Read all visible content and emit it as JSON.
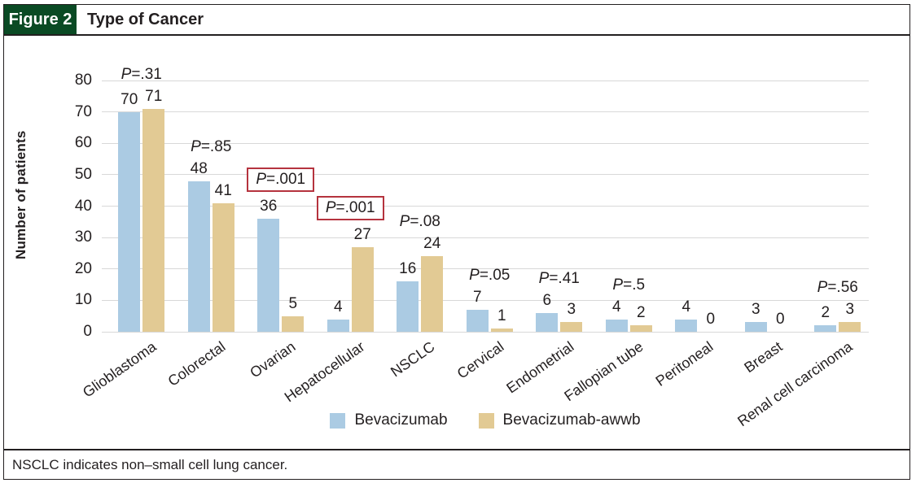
{
  "header": {
    "figure_label": "Figure 2",
    "title": "Type of Cancer"
  },
  "footer": {
    "note": "NSCLC indicates non–small cell lung cancer."
  },
  "colors": {
    "figure_green": "#0a4a24",
    "bar_blue": "#abcbe3",
    "bar_tan": "#e2ca94",
    "p_box_red": "#b5333e",
    "gridline": "#d8d8d8",
    "border_ink": "#231f20"
  },
  "chart_data": {
    "type": "bar",
    "title": "Type of Cancer",
    "xlabel": "",
    "ylabel": "Number of patients",
    "ylim": [
      0,
      80
    ],
    "ytick_step": 10,
    "grid": true,
    "legend_position": "bottom",
    "categories": [
      "Glioblastoma",
      "Colorectal",
      "Ovarian",
      "Hepatocellular",
      "NSCLC",
      "Cervical",
      "Endometrial",
      "Fallopian tube",
      "Peritoneal",
      "Breast",
      "Renal cell carcinoma"
    ],
    "series": [
      {
        "name": "Bevacizumab",
        "color": "#abcbe3",
        "values": [
          70,
          48,
          36,
          4,
          16,
          7,
          6,
          4,
          4,
          3,
          2
        ]
      },
      {
        "name": "Bevacizumab-awwb",
        "color": "#e2ca94",
        "values": [
          71,
          41,
          5,
          27,
          24,
          1,
          3,
          2,
          0,
          0,
          3
        ]
      }
    ],
    "p_values": [
      {
        "label": "P=.31",
        "boxed": false
      },
      {
        "label": "P=.85",
        "boxed": false
      },
      {
        "label": "P=.001",
        "boxed": true
      },
      {
        "label": "P=.001",
        "boxed": true
      },
      {
        "label": "P=.08",
        "boxed": false
      },
      {
        "label": "P=.05",
        "boxed": false
      },
      {
        "label": "P=.41",
        "boxed": false
      },
      {
        "label": "P=.5",
        "boxed": false
      },
      null,
      null,
      {
        "label": "P=.56",
        "boxed": false
      }
    ]
  }
}
